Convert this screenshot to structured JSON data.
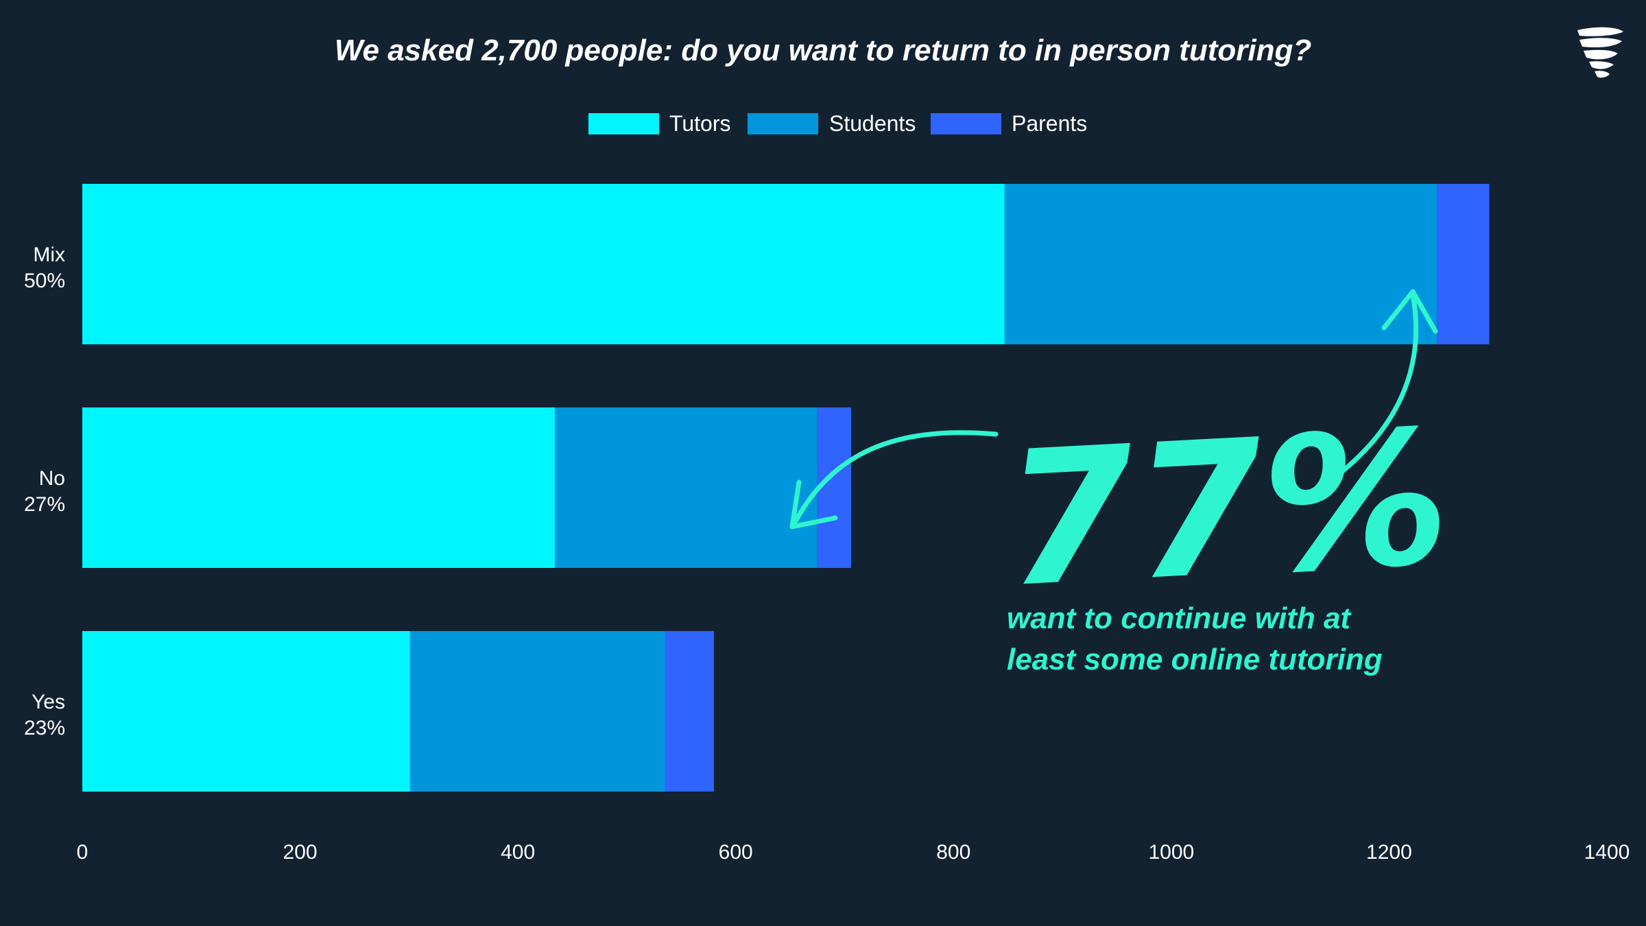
{
  "chart_data": {
    "type": "bar",
    "orientation": "horizontal",
    "stacked": true,
    "title": "We asked 2,700 people: do you want to return to in person tutoring?",
    "categories": [
      "Mix",
      "No",
      "Yes"
    ],
    "category_percent_labels": [
      "50%",
      "27%",
      "23%"
    ],
    "series": [
      {
        "name": "Tutors",
        "values": [
          847,
          434,
          301
        ],
        "color": "#00F6FF"
      },
      {
        "name": "Students",
        "values": [
          397,
          241,
          234
        ],
        "color": "#0096DC"
      },
      {
        "name": "Parents",
        "values": [
          48,
          31,
          45
        ],
        "color": "#2F64FF"
      }
    ],
    "x_ticks": [
      "0",
      "200",
      "400",
      "600",
      "800",
      "1000",
      "1200",
      "1400"
    ],
    "xlim": [
      0,
      1400
    ],
    "grid": false,
    "legend_position": "top-center",
    "annotation": {
      "big_text": "77%",
      "sub_text_lines": [
        "want to continue with at",
        "least some online tutoring"
      ],
      "color": "#2EF5D0"
    }
  },
  "colors": {
    "background": "#132231",
    "text": "#FFFFFF",
    "accent": "#2EF5D0"
  },
  "logo_icon": "tornado-logo-icon"
}
